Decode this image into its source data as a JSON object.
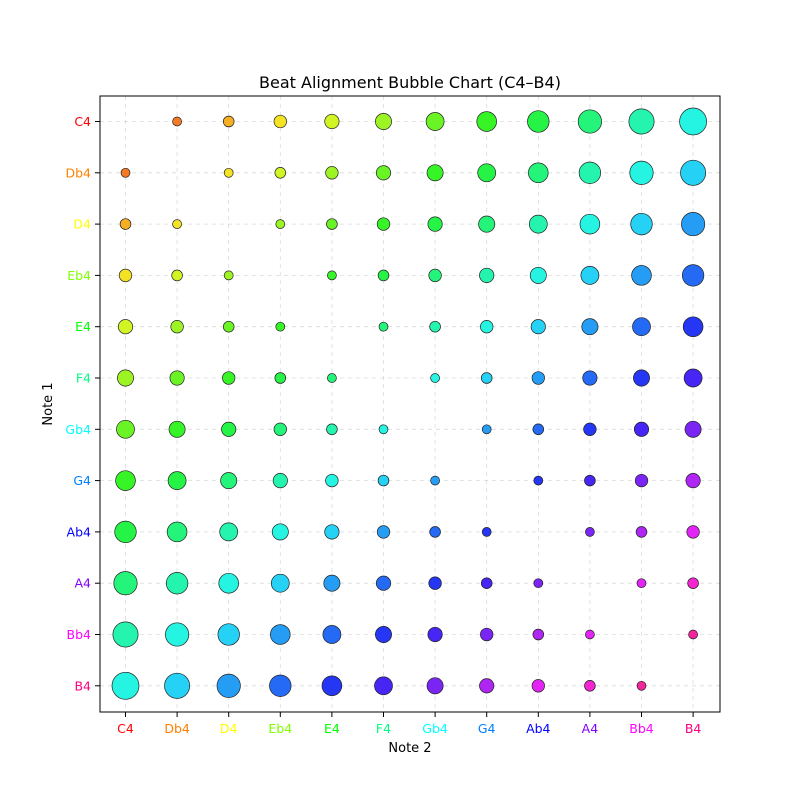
{
  "chart_data": {
    "type": "scatter",
    "title": "Beat Alignment Bubble Chart (C4–B4)",
    "xlabel": "Note 2",
    "ylabel": "Note 1",
    "notes": [
      "C4",
      "Db4",
      "D4",
      "Eb4",
      "E4",
      "F4",
      "Gb4",
      "G4",
      "Ab4",
      "A4",
      "Bb4",
      "B4"
    ],
    "note_colors": [
      "#ff0000",
      "#ff8000",
      "#ffff00",
      "#80ff00",
      "#00ff00",
      "#00ff80",
      "#00ffff",
      "#0080ff",
      "#0000ff",
      "#8000ff",
      "#ff00ff",
      "#ff0080"
    ],
    "bubble_value": "semitone interval |i - j| between Note 1 and Note 2 (no bubble where the notes are equal)",
    "size_range_semitones": [
      1,
      11
    ],
    "bubble_color_rule": "hue grows with the combined semitone index of the two notes",
    "grid": true,
    "legend": "none"
  }
}
